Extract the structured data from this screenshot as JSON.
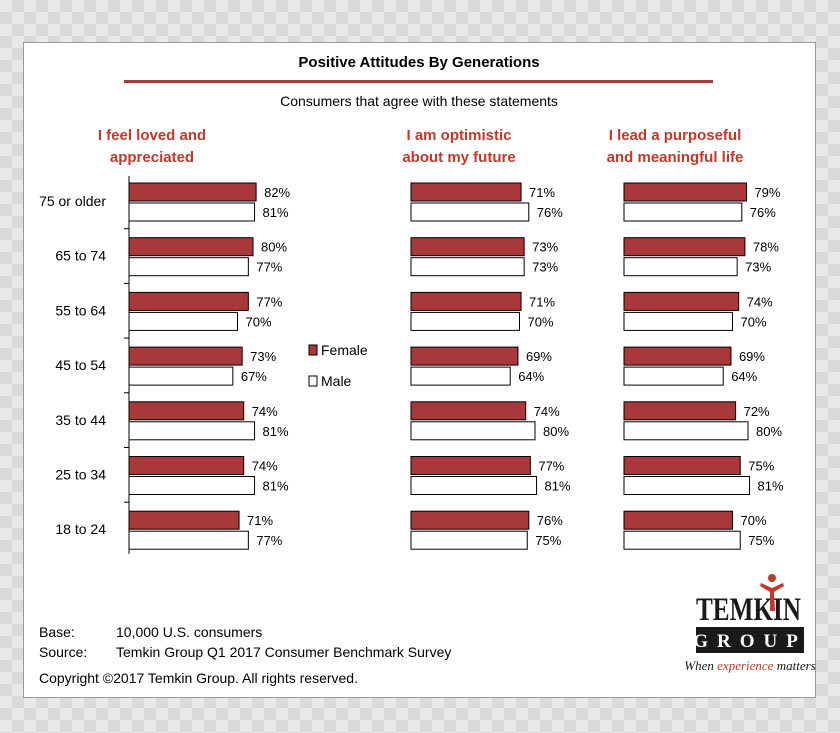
{
  "chart_data": {
    "type": "bar",
    "title": "Positive Attitudes By Generations",
    "subtitle": "Consumers that agree with these statements",
    "categories": [
      "75 or older",
      "65 to 74",
      "55 to 64",
      "45 to 54",
      "35 to 44",
      "25 to 34",
      "18 to 24"
    ],
    "legend": [
      "Female",
      "Male"
    ],
    "colors": {
      "Female": "#a8383a",
      "Male": "#ffffff",
      "accent": "#c0392b"
    },
    "panels": [
      {
        "title_lines": [
          "I feel loved and",
          "appreciated"
        ],
        "series": [
          {
            "name": "Female",
            "values": [
              82,
              80,
              77,
              73,
              74,
              74,
              71
            ]
          },
          {
            "name": "Male",
            "values": [
              81,
              77,
              70,
              67,
              81,
              81,
              77
            ]
          }
        ]
      },
      {
        "title_lines": [
          "I am optimistic",
          "about my future"
        ],
        "series": [
          {
            "name": "Female",
            "values": [
              71,
              73,
              71,
              69,
              74,
              77,
              76
            ]
          },
          {
            "name": "Male",
            "values": [
              76,
              73,
              70,
              64,
              80,
              81,
              75
            ]
          }
        ]
      },
      {
        "title_lines": [
          "I lead a purposeful",
          "and meaningful life"
        ],
        "series": [
          {
            "name": "Female",
            "values": [
              79,
              78,
              74,
              69,
              72,
              75,
              70
            ]
          },
          {
            "name": "Male",
            "values": [
              76,
              73,
              70,
              64,
              80,
              81,
              75
            ]
          }
        ]
      }
    ],
    "value_suffix": "%"
  },
  "footer": {
    "base_label": "Base:",
    "base_value": "10,000 U.S. consumers",
    "source_label": "Source:",
    "source_value": "Temkin Group Q1 2017 Consumer Benchmark Survey",
    "copyright": "Copyright ©2017 Temkin Group. All rights reserved."
  },
  "logo": {
    "word_top": "TEMKIN",
    "word_bottom": "GROUP",
    "tagline_pre": "When ",
    "tagline_accent": "experience",
    "tagline_post": " matters"
  }
}
